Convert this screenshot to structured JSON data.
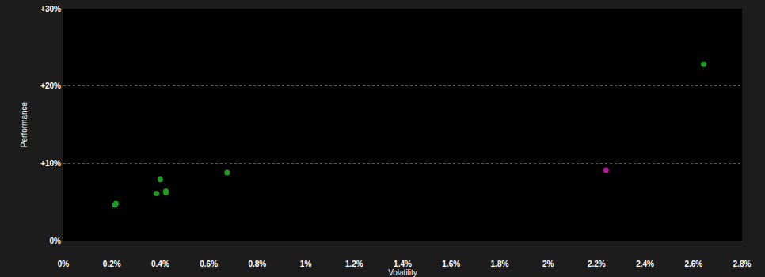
{
  "chart_data": {
    "type": "scatter",
    "x_label": "Volatility",
    "y_label": "Performance",
    "x": [
      0.217,
      0.213,
      0.4,
      0.384,
      0.423,
      0.423,
      0.676,
      2.642,
      2.239
    ],
    "values": [
      4.8,
      4.6,
      7.9,
      6.1,
      6.4,
      6.2,
      8.8,
      22.8,
      9.1
    ],
    "colors": [
      "#1e9e1e",
      "#1e9e1e",
      "#1e9e1e",
      "#1e9e1e",
      "#1e9e1e",
      "#1e9e1e",
      "#1e9e1e",
      "#1e9e1e",
      "#b4189f"
    ],
    "xlim": [
      0,
      2.8
    ],
    "xticks": [
      {
        "value": 0,
        "label": "0%"
      },
      {
        "value": 0.2,
        "label": "0.2%"
      },
      {
        "value": 0.4,
        "label": "0.4%"
      },
      {
        "value": 0.6,
        "label": "0.6%"
      },
      {
        "value": 0.8,
        "label": "0.8%"
      },
      {
        "value": 1,
        "label": "1%"
      },
      {
        "value": 1.2,
        "label": "1.2%"
      },
      {
        "value": 1.4,
        "label": "1.4%"
      },
      {
        "value": 1.6,
        "label": "1.6%"
      },
      {
        "value": 1.8,
        "label": "1.8%"
      },
      {
        "value": 2,
        "label": "2%"
      },
      {
        "value": 2.2,
        "label": "2.2%"
      },
      {
        "value": 2.4,
        "label": "2.4%"
      },
      {
        "value": 2.6,
        "label": "2.6%"
      },
      {
        "value": 2.8,
        "label": "2.8%"
      }
    ],
    "ylim": [
      0,
      30
    ],
    "yticks": [
      {
        "value": 0,
        "label": "0%"
      },
      {
        "value": 10,
        "label": "+10%"
      },
      {
        "value": 20,
        "label": "+20%"
      },
      {
        "value": 30,
        "label": "+30%"
      }
    ],
    "grid": true
  }
}
